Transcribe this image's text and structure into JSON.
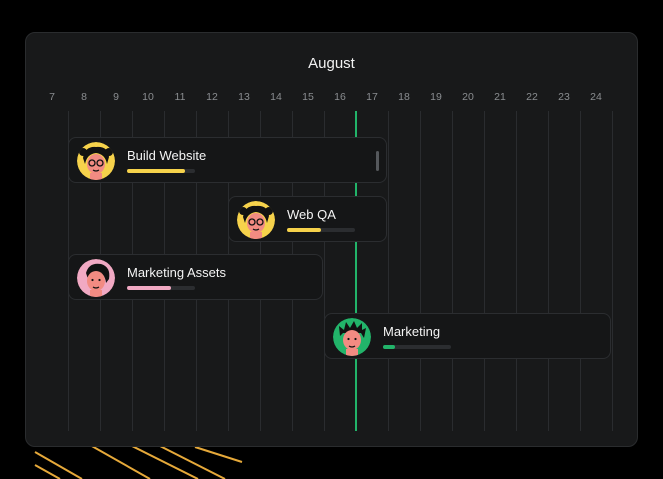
{
  "header": {
    "month": "August"
  },
  "days": [
    "7",
    "8",
    "9",
    "10",
    "11",
    "12",
    "13",
    "14",
    "15",
    "16",
    "17",
    "18",
    "19",
    "20",
    "21",
    "22",
    "23",
    "24"
  ],
  "today_line_color": "#22b46a",
  "tasks": [
    {
      "name": "Build Website",
      "progress": 0.85,
      "bar_color": "#f6d24b",
      "avatar_bg": "#f6d24b",
      "avatar_icon": "person-glasses-avatar-icon"
    },
    {
      "name": "Web QA",
      "progress": 0.5,
      "bar_color": "#f6d24b",
      "avatar_bg": "#f6d24b",
      "avatar_icon": "person-glasses-avatar-icon"
    },
    {
      "name": "Marketing Assets",
      "progress": 0.65,
      "bar_color": "#f1a9c3",
      "avatar_bg": "#f1a9c3",
      "avatar_icon": "person-short-hair-avatar-icon"
    },
    {
      "name": "Marketing",
      "progress": 0.18,
      "bar_color": "#22b46a",
      "avatar_bg": "#22b46a",
      "avatar_icon": "person-spiky-hair-avatar-icon"
    }
  ]
}
